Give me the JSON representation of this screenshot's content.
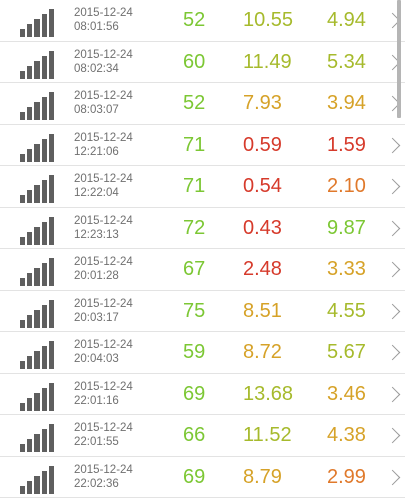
{
  "colors": {
    "green": "#7cc734",
    "olive": "#a6ba2c",
    "amber": "#d6a228",
    "orange": "#e0792b",
    "red": "#d63a2b"
  },
  "icons": {
    "signal": "signal-bars-icon",
    "chevron": "chevron-right-icon"
  },
  "rows": [
    {
      "date": "2015-12-24",
      "time": "08:01:56",
      "v1": "52",
      "v2": "10.55",
      "v3": "4.94",
      "c1": "green",
      "c2": "olive",
      "c3": "olive"
    },
    {
      "date": "2015-12-24",
      "time": "08:02:34",
      "v1": "60",
      "v2": "11.49",
      "v3": "5.34",
      "c1": "green",
      "c2": "olive",
      "c3": "olive"
    },
    {
      "date": "2015-12-24",
      "time": "08:03:07",
      "v1": "52",
      "v2": "7.93",
      "v3": "3.94",
      "c1": "green",
      "c2": "amber",
      "c3": "amber"
    },
    {
      "date": "2015-12-24",
      "time": "12:21:06",
      "v1": "71",
      "v2": "0.59",
      "v3": "1.59",
      "c1": "green",
      "c2": "red",
      "c3": "red"
    },
    {
      "date": "2015-12-24",
      "time": "12:22:04",
      "v1": "71",
      "v2": "0.54",
      "v3": "2.10",
      "c1": "green",
      "c2": "red",
      "c3": "orange"
    },
    {
      "date": "2015-12-24",
      "time": "12:23:13",
      "v1": "72",
      "v2": "0.43",
      "v3": "9.87",
      "c1": "green",
      "c2": "red",
      "c3": "green"
    },
    {
      "date": "2015-12-24",
      "time": "20:01:28",
      "v1": "67",
      "v2": "2.48",
      "v3": "3.33",
      "c1": "green",
      "c2": "red",
      "c3": "amber"
    },
    {
      "date": "2015-12-24",
      "time": "20:03:17",
      "v1": "75",
      "v2": "8.51",
      "v3": "4.55",
      "c1": "green",
      "c2": "amber",
      "c3": "olive"
    },
    {
      "date": "2015-12-24",
      "time": "20:04:03",
      "v1": "59",
      "v2": "8.72",
      "v3": "5.67",
      "c1": "green",
      "c2": "amber",
      "c3": "olive"
    },
    {
      "date": "2015-12-24",
      "time": "22:01:16",
      "v1": "69",
      "v2": "13.68",
      "v3": "3.46",
      "c1": "green",
      "c2": "olive",
      "c3": "amber"
    },
    {
      "date": "2015-12-24",
      "time": "22:01:55",
      "v1": "66",
      "v2": "11.52",
      "v3": "4.38",
      "c1": "green",
      "c2": "olive",
      "c3": "amber"
    },
    {
      "date": "2015-12-24",
      "time": "22:02:36",
      "v1": "69",
      "v2": "8.79",
      "v3": "2.99",
      "c1": "green",
      "c2": "amber",
      "c3": "orange"
    }
  ]
}
